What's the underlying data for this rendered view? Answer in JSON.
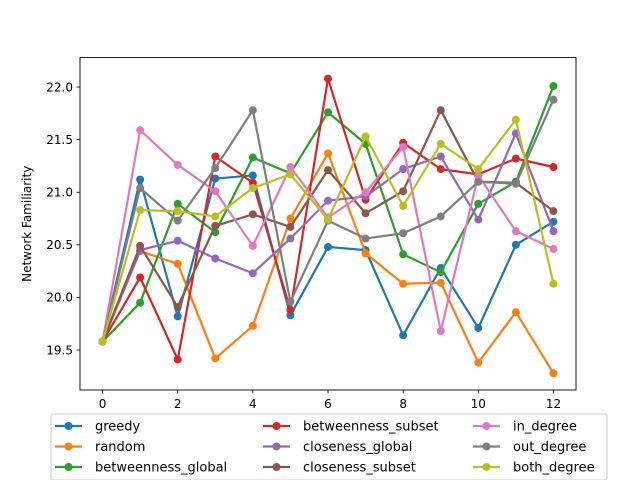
{
  "chart_data": {
    "type": "line",
    "title": "",
    "xlabel": "",
    "ylabel": "Network Familiarity",
    "x": [
      0,
      1,
      2,
      3,
      4,
      5,
      6,
      7,
      8,
      9,
      10,
      11,
      12
    ],
    "xlim": [
      -0.6,
      12.6
    ],
    "ylim": [
      19.12,
      22.28
    ],
    "xticks": [
      0,
      2,
      4,
      6,
      8,
      10,
      12
    ],
    "yticks": [
      19.5,
      20.0,
      20.5,
      21.0,
      21.5,
      22.0
    ],
    "ytick_labels": [
      "19.5",
      "20.0",
      "20.5",
      "21.0",
      "21.5",
      "22.0"
    ],
    "grid": false,
    "legend_position": "bottom",
    "series": [
      {
        "name": "greedy",
        "color": "#1f77b4",
        "values": [
          19.58,
          21.12,
          19.82,
          21.13,
          21.16,
          19.83,
          20.48,
          20.45,
          19.64,
          20.28,
          19.71,
          20.5,
          20.72
        ]
      },
      {
        "name": "random",
        "color": "#ff7f0e",
        "values": [
          19.58,
          20.44,
          20.32,
          19.42,
          19.73,
          20.75,
          21.37,
          20.42,
          20.13,
          20.14,
          19.38,
          19.86,
          19.28
        ]
      },
      {
        "name": "betweenness_global",
        "color": "#2ca02c",
        "values": [
          19.58,
          19.95,
          20.89,
          20.62,
          21.33,
          21.18,
          21.76,
          21.46,
          20.41,
          20.24,
          20.89,
          21.1,
          22.01
        ]
      },
      {
        "name": "betweenness_subset",
        "color": "#d62728",
        "values": [
          19.58,
          20.19,
          19.41,
          21.34,
          21.09,
          19.88,
          22.08,
          20.93,
          21.47,
          21.22,
          21.17,
          21.32,
          21.24
        ]
      },
      {
        "name": "closeness_global",
        "color": "#9467bd",
        "values": [
          19.58,
          20.45,
          20.54,
          20.37,
          20.23,
          20.56,
          20.92,
          20.96,
          21.22,
          21.34,
          20.74,
          21.56,
          20.63
        ]
      },
      {
        "name": "closeness_subset",
        "color": "#8c564b",
        "values": [
          19.58,
          20.49,
          19.91,
          20.68,
          20.79,
          20.67,
          21.21,
          20.8,
          21.01,
          21.78,
          21.1,
          21.09,
          20.82
        ]
      },
      {
        "name": "in_degree",
        "color": "#e377c2",
        "values": [
          19.58,
          21.59,
          21.26,
          21.01,
          20.49,
          21.24,
          20.76,
          21.0,
          21.43,
          19.68,
          21.16,
          20.63,
          20.46
        ]
      },
      {
        "name": "out_degree",
        "color": "#7f7f7f",
        "values": [
          19.58,
          21.04,
          20.73,
          21.23,
          21.78,
          19.96,
          20.73,
          20.56,
          20.61,
          20.77,
          21.1,
          21.08,
          21.88
        ]
      },
      {
        "name": "both_degree",
        "color": "#bcbd22",
        "values": [
          19.58,
          20.83,
          20.82,
          20.77,
          21.04,
          21.17,
          20.74,
          21.53,
          20.87,
          21.46,
          21.22,
          21.69,
          20.13
        ]
      }
    ]
  }
}
